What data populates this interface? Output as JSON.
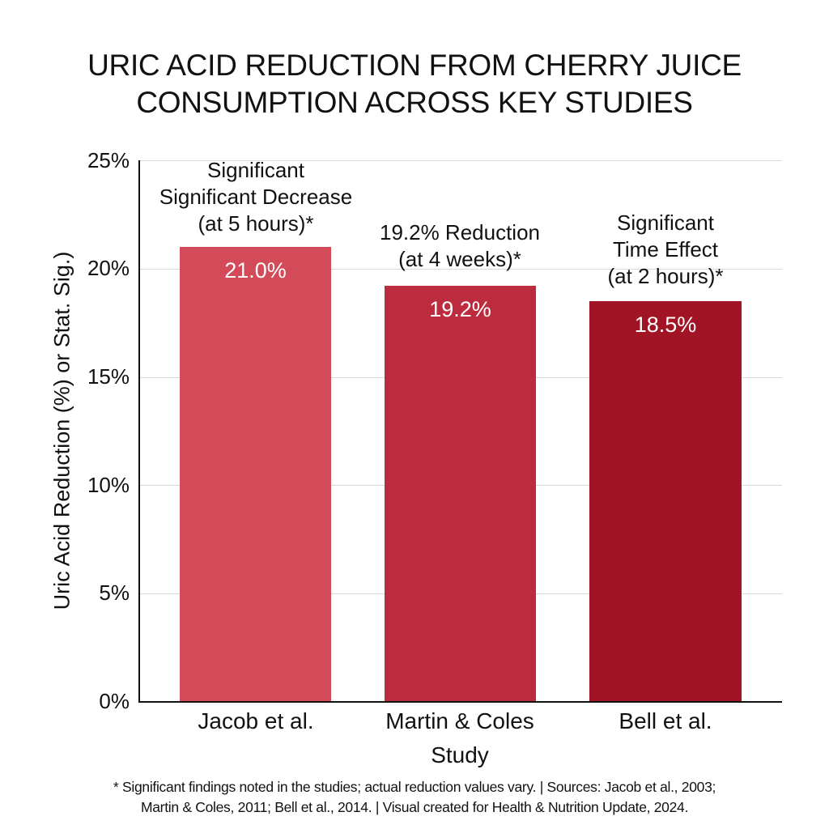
{
  "title": {
    "line1": "URIC ACID REDUCTION FROM CHERRY JUICE",
    "line2": "CONSUMPTION ACROSS KEY STUDIES"
  },
  "axes": {
    "ylabel": "Uric Acid Reduction (%) or Stat. Sig.)",
    "xlabel": "Study",
    "yticks": [
      "0%",
      "5%",
      "10%",
      "15%",
      "20%",
      "25%"
    ]
  },
  "bars": [
    {
      "category": "Jacob et al.",
      "value": 21.0,
      "value_label": "21.0%",
      "color": "#d34b58",
      "annotation": [
        "Significant",
        "Significant Decrease",
        "(at 5 hours)*"
      ]
    },
    {
      "category": "Martin & Coles",
      "value": 19.2,
      "value_label": "19.2%",
      "color": "#bd2c3e",
      "annotation": [
        "19.2% Reduction",
        "(at 4 weeks)*"
      ]
    },
    {
      "category": "Bell et al.",
      "value": 18.5,
      "value_label": "18.5%",
      "color": "#a11426",
      "annotation": [
        "Significant",
        "Time Effect",
        "(at 2 hours)*"
      ]
    }
  ],
  "footnote": {
    "line1": "* Significant findings noted in the studies; actual reduction values vary. | Sources: Jacob et al., 2003;",
    "line2": "Martin & Coles, 2011; Bell et al., 2014. | Visual created for Health & Nutrition Update, 2024."
  },
  "chart_data": {
    "type": "bar",
    "title": "URIC ACID REDUCTION FROM CHERRY JUICE CONSUMPTION ACROSS KEY STUDIES",
    "categories": [
      "Jacob et al.",
      "Martin & Coles",
      "Bell et al."
    ],
    "values": [
      21.0,
      19.2,
      18.5
    ],
    "value_labels": [
      "21.0%",
      "19.2%",
      "18.5%"
    ],
    "annotations": [
      "Significant Significant Decrease (at 5 hours)*",
      "19.2% Reduction (at 4 weeks)*",
      "Significant Time Effect (at 2 hours)*"
    ],
    "colors": [
      "#d34b58",
      "#bd2c3e",
      "#a11426"
    ],
    "xlabel": "Study",
    "ylabel": "Uric Acid Reduction (%) or Stat. Sig.)",
    "ylim": [
      0,
      25
    ],
    "yticks": [
      0,
      5,
      10,
      15,
      20,
      25
    ],
    "ytick_format": "percent",
    "grid": true,
    "legend": null,
    "footnote": "* Significant findings noted in the studies; actual reduction values vary. | Sources: Jacob et al., 2003; Martin & Coles, 2011; Bell et al., 2014. | Visual created for Health & Nutrition Update, 2024."
  }
}
